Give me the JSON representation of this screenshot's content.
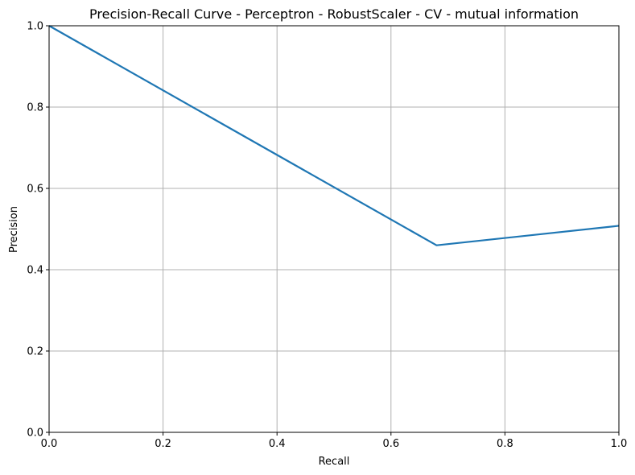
{
  "chart_data": {
    "type": "line",
    "title": "Precision-Recall Curve - Perceptron - RobustScaler - CV - mutual information",
    "xlabel": "Recall",
    "ylabel": "Precision",
    "xlim": [
      0,
      1
    ],
    "ylim": [
      0,
      1
    ],
    "xticks": [
      "0.0",
      "0.2",
      "0.4",
      "0.6",
      "0.8",
      "1.0"
    ],
    "yticks": [
      "0.0",
      "0.2",
      "0.4",
      "0.6",
      "0.8",
      "1.0"
    ],
    "grid": true,
    "series": [
      {
        "color": "#1f77b4",
        "x": [
          0.0,
          0.68,
          1.0
        ],
        "y": [
          1.0,
          0.46,
          0.508
        ]
      }
    ]
  }
}
